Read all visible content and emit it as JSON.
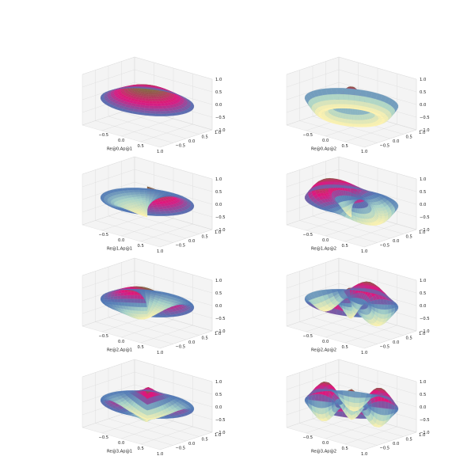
{
  "colors": {
    "surface_low": "#fff3b0",
    "surface_mid_low": "#a6d2c8",
    "surface_mid": "#4f77b5",
    "surface_mid_high": "#e2147e",
    "surface_high": "#7b6a3c",
    "pane_face": "#f4f4f4",
    "grid": "#dcdcdc",
    "axis_text": "#222222"
  },
  "chart_data": [
    {
      "type": "surface3d",
      "xlabel": "Re@0,Ap@1",
      "m": 0,
      "n": 1,
      "surface_function": "zernike-like radial mode",
      "xticks": [
        "−0.5",
        "0.0",
        "0.5",
        "1.0"
      ],
      "yticks": [
        "−0.5",
        "0.0",
        "0.5",
        "1.0"
      ],
      "zticks": [
        "−1.0",
        "−0.5",
        "0.0",
        "0.5",
        "1.0"
      ],
      "xlim": [
        -1,
        1
      ],
      "ylim": [
        -1,
        1
      ],
      "zlim": [
        -1,
        1
      ]
    },
    {
      "type": "surface3d",
      "xlabel": "Re@0,Ap@2",
      "m": 0,
      "n": 2,
      "surface_function": "zernike-like radial mode",
      "xticks": [
        "−0.5",
        "0.0",
        "0.5",
        "1.0"
      ],
      "yticks": [
        "−0.5",
        "0.0",
        "0.5",
        "1.0"
      ],
      "zticks": [
        "−1.0",
        "−0.5",
        "0.0",
        "0.5",
        "1.0"
      ],
      "xlim": [
        -1,
        1
      ],
      "ylim": [
        -1,
        1
      ],
      "zlim": [
        -1,
        1
      ]
    },
    {
      "type": "surface3d",
      "xlabel": "Re@1,Ap@1",
      "m": 1,
      "n": 1,
      "surface_function": "zernike-like radial mode",
      "xticks": [
        "−0.5",
        "0.0",
        "0.5",
        "1.0"
      ],
      "yticks": [
        "−0.5",
        "0.0",
        "0.5",
        "1.0"
      ],
      "zticks": [
        "−1.0",
        "−0.5",
        "0.0",
        "0.5",
        "1.0"
      ],
      "xlim": [
        -1,
        1
      ],
      "ylim": [
        -1,
        1
      ],
      "zlim": [
        -1,
        1
      ]
    },
    {
      "type": "surface3d",
      "xlabel": "Re@1,Ap@2",
      "m": 1,
      "n": 2,
      "surface_function": "zernike-like radial mode",
      "xticks": [
        "−0.5",
        "0.0",
        "0.5",
        "1.0"
      ],
      "yticks": [
        "−0.5",
        "0.0",
        "0.5",
        "1.0"
      ],
      "zticks": [
        "−1.0",
        "−0.5",
        "0.0",
        "0.5",
        "1.0"
      ],
      "xlim": [
        -1,
        1
      ],
      "ylim": [
        -1,
        1
      ],
      "zlim": [
        -1,
        1
      ]
    },
    {
      "type": "surface3d",
      "xlabel": "Re@2,Ap@1",
      "m": 2,
      "n": 1,
      "surface_function": "zernike-like radial mode",
      "xticks": [
        "−0.5",
        "0.0",
        "0.5",
        "1.0"
      ],
      "yticks": [
        "−0.5",
        "0.0",
        "0.5",
        "1.0"
      ],
      "zticks": [
        "−1.0",
        "−0.5",
        "0.0",
        "0.5",
        "1.0"
      ],
      "xlim": [
        -1,
        1
      ],
      "ylim": [
        -1,
        1
      ],
      "zlim": [
        -1,
        1
      ]
    },
    {
      "type": "surface3d",
      "xlabel": "Re@2,Ap@2",
      "m": 2,
      "n": 2,
      "surface_function": "zernike-like radial mode",
      "xticks": [
        "−0.5",
        "0.0",
        "0.5",
        "1.0"
      ],
      "yticks": [
        "−0.5",
        "0.0",
        "0.5",
        "1.0"
      ],
      "zticks": [
        "−1.0",
        "−0.5",
        "0.0",
        "0.5",
        "1.0"
      ],
      "xlim": [
        -1,
        1
      ],
      "ylim": [
        -1,
        1
      ],
      "zlim": [
        -1,
        1
      ]
    },
    {
      "type": "surface3d",
      "xlabel": "Re@3,Ap@1",
      "m": 3,
      "n": 1,
      "surface_function": "zernike-like radial mode",
      "xticks": [
        "−0.5",
        "0.0",
        "0.5",
        "1.0"
      ],
      "yticks": [
        "−0.5",
        "0.0",
        "0.5",
        "1.0"
      ],
      "zticks": [
        "−1.0",
        "−0.5",
        "0.0",
        "0.5",
        "1.0"
      ],
      "xlim": [
        -1,
        1
      ],
      "ylim": [
        -1,
        1
      ],
      "zlim": [
        -1,
        1
      ]
    },
    {
      "type": "surface3d",
      "xlabel": "Re@3,Ap@2",
      "m": 3,
      "n": 2,
      "surface_function": "zernike-like radial mode",
      "xticks": [
        "−0.5",
        "0.0",
        "0.5",
        "1.0"
      ],
      "yticks": [
        "−0.5",
        "0.0",
        "0.5",
        "1.0"
      ],
      "zticks": [
        "−1.0",
        "−0.5",
        "0.0",
        "0.5",
        "1.0"
      ],
      "xlim": [
        -1,
        1
      ],
      "ylim": [
        -1,
        1
      ],
      "zlim": [
        -1,
        1
      ]
    }
  ]
}
